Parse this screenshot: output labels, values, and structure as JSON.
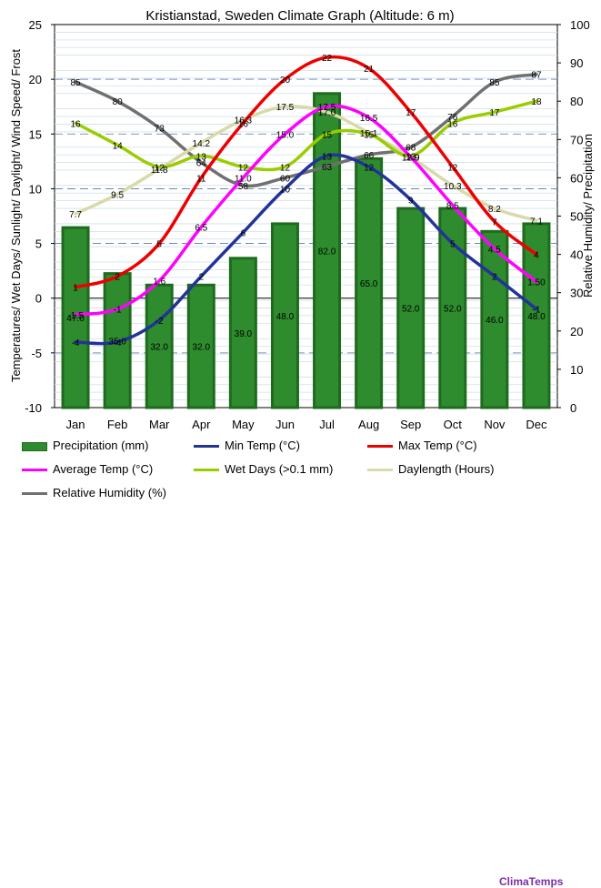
{
  "chart_data": {
    "type": "bar+line",
    "title": "Kristianstad, Sweden Climate Graph (Altitude: 6 m)",
    "ylabel_left": "Temperatures/ Wet Days/ Sunlight/ Daylight/ Wind Speed/ Frost",
    "ylabel_right": "Relative Humidity/ Precipitation",
    "ylim_left": [
      -10,
      25
    ],
    "ylim_right": [
      0,
      100
    ],
    "yticks_left": [
      "-10",
      "-5",
      "0",
      "5",
      "10",
      "15",
      "20",
      "25"
    ],
    "yticks_right": [
      "0",
      "10",
      "20",
      "30",
      "40",
      "50",
      "60",
      "70",
      "80",
      "90",
      "100"
    ],
    "categories": [
      "Jan",
      "Feb",
      "Mar",
      "Apr",
      "May",
      "Jun",
      "Jul",
      "Aug",
      "Sep",
      "Oct",
      "Nov",
      "Dec"
    ],
    "grid": true,
    "legend_position": "bottom",
    "brand": "ClimaTemps",
    "legend": [
      {
        "key": "precip",
        "label": "Precipitation (mm)"
      },
      {
        "key": "min",
        "label": "Min Temp (°C)"
      },
      {
        "key": "max",
        "label": "Max Temp (°C)"
      },
      {
        "key": "avg",
        "label": "Average Temp (°C)"
      },
      {
        "key": "wet",
        "label": "Wet Days (>0.1 mm)"
      },
      {
        "key": "day",
        "label": "Daylength (Hours)"
      },
      {
        "key": "hum",
        "label": "Relative Humidity (%)"
      }
    ],
    "bars": {
      "key": "precip",
      "color": "#2e8b2e",
      "axis": "right",
      "values": [
        47.0,
        35.0,
        32.0,
        32.0,
        39.0,
        48.0,
        82.0,
        65.0,
        52.0,
        52.0,
        46.0,
        48.0
      ],
      "labels": [
        "47.0",
        "35.0",
        "32.0",
        "32.0",
        "39.0",
        "48.0",
        "82.0",
        "65.0",
        "52.0",
        "52.0",
        "46.0",
        "48.0"
      ]
    },
    "lines": [
      {
        "key": "hum",
        "color": "#707070",
        "axis": "right",
        "values": [
          85,
          80,
          73,
          64,
          58,
          60,
          63,
          66,
          68,
          76,
          85,
          87
        ],
        "labels": [
          "85",
          "80",
          "73",
          "64",
          "58",
          "60",
          "63",
          "66",
          "68",
          "76",
          "85",
          "87"
        ]
      },
      {
        "key": "day",
        "color": "#d9d9aa",
        "axis": "left",
        "values": [
          7.7,
          9.5,
          11.8,
          14.2,
          16.3,
          17.5,
          17.0,
          15.1,
          12.9,
          10.3,
          8.2,
          7.1
        ],
        "labels": [
          "7.7",
          "9.5",
          "11.8",
          "14.2",
          "16.3",
          "17.5",
          "17.0",
          "15.1",
          "12.9",
          "10.3",
          "8.2",
          "7.1"
        ]
      },
      {
        "key": "wet",
        "color": "#9acd00",
        "axis": "left",
        "values": [
          16,
          14,
          12,
          13,
          12,
          12,
          15,
          15,
          13,
          16,
          17,
          18
        ],
        "labels": [
          "16",
          "14",
          "12",
          "13",
          "12",
          "12",
          "15",
          "15",
          "13",
          "16",
          "17",
          "18"
        ]
      },
      {
        "key": "max",
        "color": "#ee0000",
        "axis": "left",
        "values": [
          1,
          2,
          5,
          11,
          16,
          20,
          22,
          21,
          17,
          12,
          7,
          4
        ],
        "labels": [
          "1",
          "2",
          "5",
          "11",
          "16",
          "20",
          "22",
          "21",
          "17",
          "12",
          "7",
          "4"
        ]
      },
      {
        "key": "avg",
        "color": "#ff00ff",
        "axis": "left",
        "values": [
          -1.5,
          -1,
          1.6,
          6.5,
          11.0,
          15.0,
          17.5,
          16.5,
          12.9,
          8.5,
          4.5,
          1.5
        ],
        "labels": [
          "-1.5",
          "-1",
          "1.6",
          "6.5",
          "11.0",
          "15.0",
          "17.5",
          "16.5",
          "12.9",
          "8.5",
          "4.5",
          "1.50"
        ]
      },
      {
        "key": "min",
        "color": "#223399",
        "axis": "left",
        "values": [
          -4,
          -4,
          -2,
          2,
          6,
          10,
          13,
          12,
          9,
          5,
          2,
          -1
        ],
        "labels": [
          "-4",
          "-4",
          "-2",
          "2",
          "6",
          "10",
          "13",
          "12",
          "9",
          "5",
          "2",
          "-1"
        ]
      }
    ]
  }
}
